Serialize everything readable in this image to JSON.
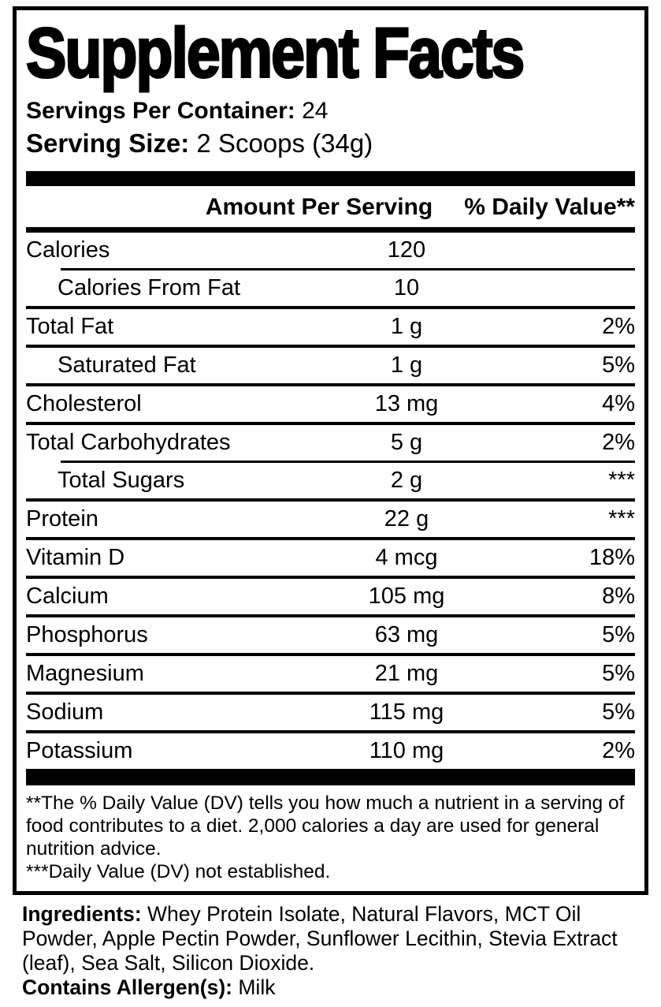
{
  "panel": {
    "title": "Supplement Facts",
    "servings_per_container_label": "Servings Per Container:",
    "servings_per_container_value": "24",
    "serving_size_label": "Serving Size:",
    "serving_size_value": "2 Scoops (34g)",
    "columns": {
      "amount": "Amount Per Serving",
      "daily_value": "% Daily Value**"
    },
    "rows": [
      {
        "name": "Calories",
        "amount": "120",
        "daily_value": "",
        "indent": false,
        "rule_indent": false
      },
      {
        "name": "Calories From Fat",
        "amount": "10",
        "daily_value": "",
        "indent": true,
        "rule_indent": true
      },
      {
        "name": "Total Fat",
        "amount": "1 g",
        "daily_value": "2%",
        "indent": false,
        "rule_indent": false
      },
      {
        "name": "Saturated Fat",
        "amount": "1 g",
        "daily_value": "5%",
        "indent": true,
        "rule_indent": false
      },
      {
        "name": "Cholesterol",
        "amount": "13 mg",
        "daily_value": "4%",
        "indent": false,
        "rule_indent": false
      },
      {
        "name": "Total Carbohydrates",
        "amount": "5 g",
        "daily_value": "2%",
        "indent": false,
        "rule_indent": false
      },
      {
        "name": "Total Sugars",
        "amount": "2 g",
        "daily_value": "***",
        "indent": true,
        "rule_indent": true
      },
      {
        "name": "Protein",
        "amount": "22 g",
        "daily_value": "***",
        "indent": false,
        "rule_indent": false
      },
      {
        "name": "Vitamin D",
        "amount": "4 mcg",
        "daily_value": "18%",
        "indent": false,
        "rule_indent": false
      },
      {
        "name": "Calcium",
        "amount": "105 mg",
        "daily_value": "8%",
        "indent": false,
        "rule_indent": false
      },
      {
        "name": "Phosphorus",
        "amount": "63 mg",
        "daily_value": "5%",
        "indent": false,
        "rule_indent": false
      },
      {
        "name": "Magnesium",
        "amount": "21 mg",
        "daily_value": "5%",
        "indent": false,
        "rule_indent": false
      },
      {
        "name": "Sodium",
        "amount": "115 mg",
        "daily_value": "5%",
        "indent": false,
        "rule_indent": false
      },
      {
        "name": "Potassium",
        "amount": "110 mg",
        "daily_value": "2%",
        "indent": false,
        "rule_indent": false
      }
    ],
    "footnotes": [
      "**The % Daily Value (DV) tells you how much a nutrient in a serving of food contributes to a diet. 2,000 calories a day are used for general nutrition advice.",
      "***Daily Value (DV) not established."
    ]
  },
  "ingredients": {
    "label": "Ingredients:",
    "value": "Whey Protein Isolate, Natural Flavors, MCT Oil Powder, Apple Pectin Powder, Sunflower Lecithin, Stevia Extract (leaf), Sea Salt, Silicon Dioxide.",
    "allergen_label": "Contains Allergen(s):",
    "allergen_value": "Milk"
  },
  "colors": {
    "ink": "#000000",
    "background": "#ffffff"
  }
}
